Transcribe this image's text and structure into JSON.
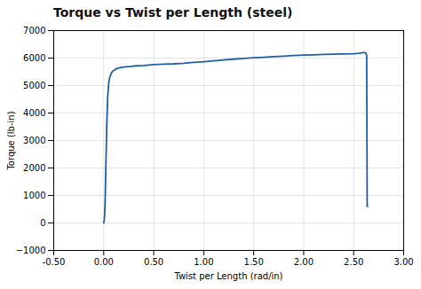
{
  "chart_data": {
    "type": "line",
    "title": "Torque vs Twist per Length (steel)",
    "xlabel": "Twist per Length (rad/in)",
    "ylabel": "Torque (lb-in)",
    "x": [
      0.0,
      0.005,
      0.01,
      0.015,
      0.02,
      0.03,
      0.04,
      0.05,
      0.06,
      0.08,
      0.1,
      0.12,
      0.15,
      0.18,
      0.2,
      0.22,
      0.25,
      0.28,
      0.3,
      0.4,
      0.5,
      0.6,
      0.7,
      0.8,
      0.9,
      1.0,
      1.1,
      1.2,
      1.3,
      1.4,
      1.5,
      1.6,
      1.7,
      1.8,
      1.9,
      2.0,
      2.1,
      2.2,
      2.3,
      2.4,
      2.5,
      2.55,
      2.58,
      2.6,
      2.62,
      2.63,
      2.635,
      2.64
    ],
    "values": [
      0,
      100,
      350,
      900,
      1800,
      3500,
      4600,
      5100,
      5300,
      5480,
      5550,
      5600,
      5640,
      5660,
      5670,
      5680,
      5690,
      5700,
      5710,
      5730,
      5760,
      5780,
      5790,
      5810,
      5840,
      5870,
      5900,
      5930,
      5960,
      5990,
      6010,
      6030,
      6050,
      6070,
      6090,
      6110,
      6120,
      6130,
      6140,
      6150,
      6160,
      6175,
      6190,
      6200,
      6195,
      6100,
      600,
      600
    ],
    "color": "#1f5fa6",
    "xlim": [
      -0.5,
      3.0
    ],
    "ylim": [
      -1000,
      7000
    ],
    "xticks": [
      {
        "value": -0.5,
        "label": "-0.50"
      },
      {
        "value": 0,
        "label": "0.00"
      },
      {
        "value": 0.5,
        "label": "0.50"
      },
      {
        "value": 1,
        "label": "1.00"
      },
      {
        "value": 1.5,
        "label": "1.50"
      },
      {
        "value": 2,
        "label": "2.00"
      },
      {
        "value": 2.5,
        "label": "2.50"
      },
      {
        "value": 3,
        "label": "3.00"
      }
    ],
    "yticks": [
      -1000,
      0,
      1000,
      2000,
      3000,
      4000,
      5000,
      6000,
      7000
    ],
    "grid": true
  }
}
